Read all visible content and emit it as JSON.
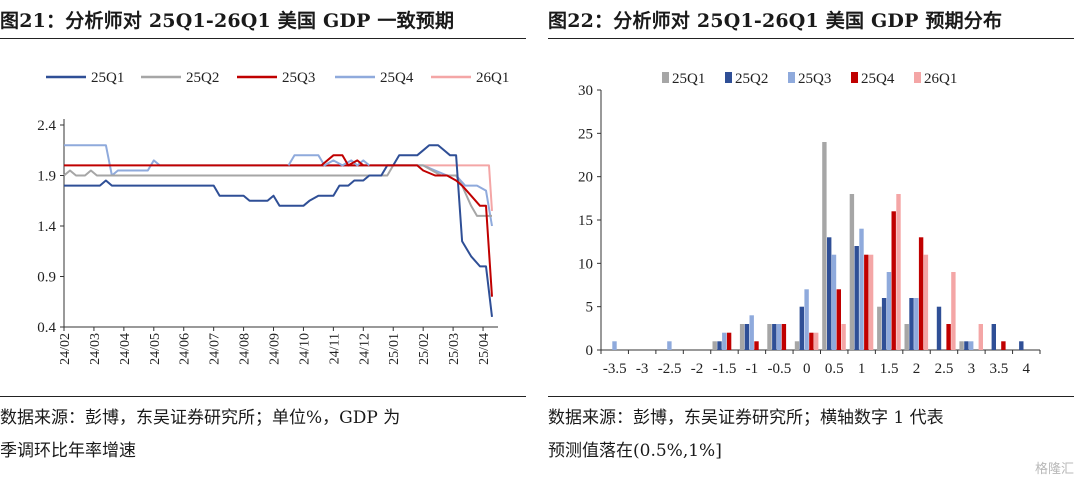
{
  "left": {
    "title": "图21：分析师对 25Q1-26Q1 美国 GDP 一致预期",
    "source_lines": [
      "数据来源：彭博，东吴证券研究所；单位%，GDP 为",
      "季调环比年率增速"
    ]
  },
  "right": {
    "title": "图22：分析师对 25Q1-26Q1 美国 GDP 预期分布",
    "source_lines": [
      "数据来源：彭博，东吴证券研究所；横轴数字 1 代表",
      "预测值落在(0.5%,1%]"
    ]
  },
  "watermark": "格隆汇",
  "colors": {
    "25Q1_line": "#2f4f96",
    "25Q2_line": "#a6a6a6",
    "25Q3_line": "#c00000",
    "25Q4_line": "#8faadc",
    "26Q1_line": "#f4a6a6",
    "25Q1_bar": "#a6a6a6",
    "25Q2_bar": "#2f4f96",
    "25Q3_bar": "#8faadc",
    "25Q4_bar": "#c00000",
    "26Q1_bar": "#f4a6a6"
  },
  "chart_data": [
    {
      "type": "line",
      "title": "分析师对 25Q1-26Q1 美国 GDP 一致预期",
      "ylim": [
        0.4,
        2.4
      ],
      "yticks": [
        0.4,
        0.9,
        1.4,
        1.9,
        2.4
      ],
      "xticks": [
        "24/02",
        "24/03",
        "24/04",
        "24/05",
        "24/06",
        "24/07",
        "24/08",
        "24/09",
        "24/10",
        "24/11",
        "24/12",
        "25/01",
        "25/02",
        "25/03",
        "25/04"
      ],
      "legend": "top",
      "series": [
        {
          "name": "25Q1",
          "points": [
            [
              1.0,
              1.8
            ],
            [
              2.2,
              1.8
            ],
            [
              2.4,
              1.85
            ],
            [
              2.6,
              1.8
            ],
            [
              6.0,
              1.8
            ],
            [
              6.2,
              1.7
            ],
            [
              7.0,
              1.7
            ],
            [
              7.2,
              1.65
            ],
            [
              7.8,
              1.65
            ],
            [
              8.0,
              1.7
            ],
            [
              8.2,
              1.6
            ],
            [
              9.0,
              1.6
            ],
            [
              9.2,
              1.65
            ],
            [
              9.5,
              1.7
            ],
            [
              10.0,
              1.7
            ],
            [
              10.2,
              1.8
            ],
            [
              10.5,
              1.8
            ],
            [
              10.7,
              1.85
            ],
            [
              11.0,
              1.85
            ],
            [
              11.2,
              1.9
            ],
            [
              11.6,
              1.9
            ],
            [
              11.8,
              2.0
            ],
            [
              12.0,
              2.0
            ],
            [
              12.2,
              2.1
            ],
            [
              12.8,
              2.1
            ],
            [
              13.0,
              2.15
            ],
            [
              13.2,
              2.2
            ],
            [
              13.5,
              2.2
            ],
            [
              13.7,
              2.15
            ],
            [
              13.9,
              2.1
            ],
            [
              14.1,
              2.1
            ],
            [
              14.3,
              1.25
            ],
            [
              14.6,
              1.1
            ],
            [
              14.9,
              1.0
            ],
            [
              15.1,
              1.0
            ],
            [
              15.3,
              0.5
            ]
          ]
        },
        {
          "name": "25Q2",
          "points": [
            [
              1.0,
              1.9
            ],
            [
              1.2,
              1.95
            ],
            [
              1.4,
              1.9
            ],
            [
              1.7,
              1.9
            ],
            [
              1.9,
              1.95
            ],
            [
              2.1,
              1.9
            ],
            [
              11.8,
              1.9
            ],
            [
              12.0,
              2.0
            ],
            [
              13.0,
              2.0
            ],
            [
              13.3,
              1.95
            ],
            [
              13.6,
              1.9
            ],
            [
              14.1,
              1.9
            ],
            [
              14.3,
              1.8
            ],
            [
              14.6,
              1.6
            ],
            [
              14.8,
              1.5
            ],
            [
              15.2,
              1.5
            ],
            [
              15.3,
              1.5
            ]
          ]
        },
        {
          "name": "25Q3",
          "points": [
            [
              1.0,
              2.0
            ],
            [
              12.6,
              2.0
            ],
            [
              12.8,
              2.0
            ],
            [
              13.0,
              1.95
            ],
            [
              13.4,
              1.9
            ],
            [
              13.8,
              1.9
            ],
            [
              14.1,
              1.85
            ],
            [
              14.3,
              1.8
            ],
            [
              14.6,
              1.7
            ],
            [
              14.9,
              1.6
            ],
            [
              15.1,
              1.6
            ],
            [
              15.3,
              0.7
            ]
          ]
        },
        {
          "name": "25Q4",
          "points": [
            [
              1.0,
              2.2
            ],
            [
              2.4,
              2.2
            ],
            [
              2.6,
              1.9
            ],
            [
              2.8,
              1.95
            ],
            [
              3.8,
              1.95
            ],
            [
              4.0,
              2.05
            ],
            [
              4.2,
              2.0
            ],
            [
              11.8,
              2.0
            ],
            [
              12.5,
              2.0
            ],
            [
              13.0,
              2.0
            ],
            [
              13.4,
              1.95
            ],
            [
              13.8,
              1.9
            ],
            [
              14.1,
              1.9
            ],
            [
              14.4,
              1.8
            ],
            [
              14.8,
              1.8
            ],
            [
              15.1,
              1.75
            ],
            [
              15.3,
              1.4
            ]
          ]
        },
        {
          "name": "26Q1",
          "points": [
            [
              8.5,
              2.0
            ],
            [
              15.2,
              2.0
            ],
            [
              15.3,
              1.55
            ]
          ]
        }
      ],
      "extra_segments": [
        {
          "name": "25Q4",
          "points": [
            [
              8.5,
              2.0
            ],
            [
              8.7,
              2.1
            ],
            [
              9.5,
              2.1
            ],
            [
              9.7,
              2.0
            ],
            [
              10.0,
              2.05
            ],
            [
              10.3,
              2.0
            ],
            [
              10.6,
              2.05
            ],
            [
              10.8,
              2.0
            ],
            [
              11.0,
              2.05
            ],
            [
              11.2,
              2.0
            ]
          ]
        },
        {
          "name": "25Q3",
          "points": [
            [
              9.6,
              2.0
            ],
            [
              10.0,
              2.1
            ],
            [
              10.3,
              2.1
            ],
            [
              10.5,
              2.0
            ],
            [
              10.8,
              2.05
            ],
            [
              11.0,
              2.0
            ]
          ]
        }
      ]
    },
    {
      "type": "bar",
      "title": "分析师对 25Q1-26Q1 美国 GDP 预期分布",
      "categories": [
        "-3.5",
        "-3",
        "-2.5",
        "-2",
        "-1.5",
        "-1",
        "-0.5",
        "0",
        "0.5",
        "1",
        "1.5",
        "2",
        "2.5",
        "3",
        "3.5",
        "4"
      ],
      "ylim": [
        0,
        30
      ],
      "yticks": [
        0,
        5,
        10,
        15,
        20,
        25,
        30
      ],
      "legend": "top",
      "series": [
        {
          "name": "25Q1",
          "values": [
            0,
            0,
            0,
            0,
            1,
            3,
            3,
            1,
            24,
            18,
            5,
            3,
            0,
            1,
            0,
            0
          ]
        },
        {
          "name": "25Q2",
          "values": [
            0,
            0,
            0,
            0,
            1,
            3,
            3,
            5,
            13,
            12,
            6,
            6,
            5,
            1,
            3,
            1
          ]
        },
        {
          "name": "25Q3",
          "values": [
            1,
            0,
            1,
            0,
            2,
            4,
            3,
            7,
            11,
            14,
            9,
            6,
            0,
            1,
            0,
            0
          ]
        },
        {
          "name": "25Q4",
          "values": [
            0,
            0,
            0,
            0,
            2,
            1,
            3,
            2,
            7,
            11,
            16,
            13,
            3,
            0,
            1,
            0
          ]
        },
        {
          "name": "26Q1",
          "values": [
            0,
            0,
            0,
            0,
            0,
            0,
            0,
            2,
            3,
            11,
            18,
            11,
            9,
            3,
            0,
            0
          ]
        }
      ]
    }
  ]
}
